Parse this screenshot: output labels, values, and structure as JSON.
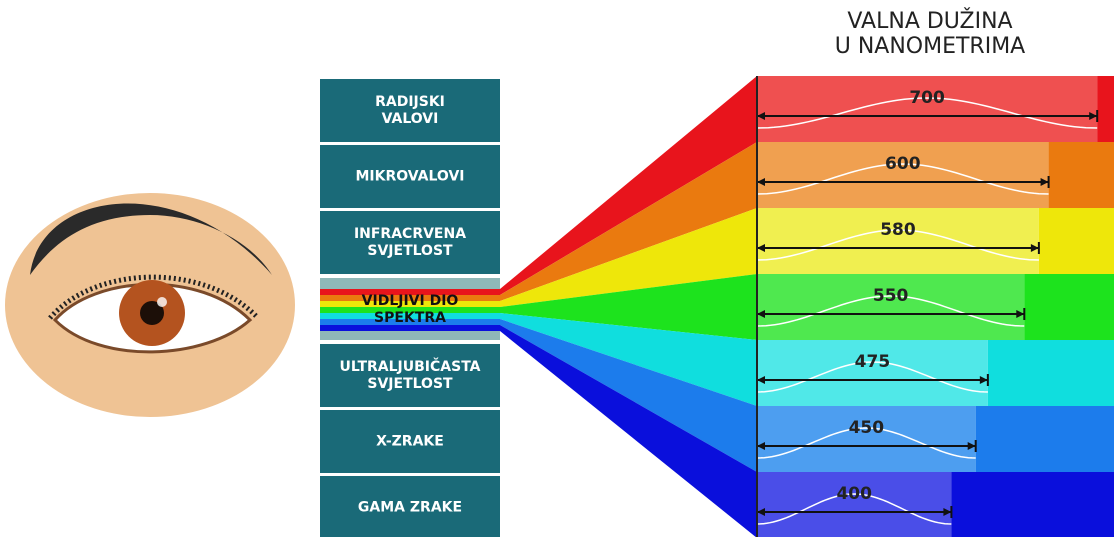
{
  "title": [
    "VALNA DUŽINA",
    "U NANOMETRIMA"
  ],
  "spectrum": [
    [
      "RADIJSKI",
      "VALOVI"
    ],
    [
      "MIKROVALOVI"
    ],
    [
      "INFRACRVENA",
      "SVJETLOST"
    ],
    [
      "VIDLJIVI DIO",
      "SPEKTRA"
    ],
    [
      "ULTRALJUBIČASTA",
      "SVJETLOST"
    ],
    [
      "X-ZRAKE"
    ],
    [
      "GAMA ZRAKE"
    ]
  ],
  "visible_index": 3,
  "wavelengths": [
    {
      "value": 700,
      "color": "#ef5050",
      "edge_color": "#e8141c"
    },
    {
      "value": 600,
      "color": "#f0a050",
      "edge_color": "#ea7a0f"
    },
    {
      "value": 580,
      "color": "#f0ef50",
      "edge_color": "#eee70a"
    },
    {
      "value": 550,
      "color": "#4fe84f",
      "edge_color": "#1de31d"
    },
    {
      "value": 475,
      "color": "#50e8e8",
      "edge_color": "#10dede"
    },
    {
      "value": 450,
      "color": "#4d9ef0",
      "edge_color": "#1c7cec"
    },
    {
      "value": 400,
      "color": "#4a4ee8",
      "edge_color": "#0a0fdc"
    }
  ]
}
